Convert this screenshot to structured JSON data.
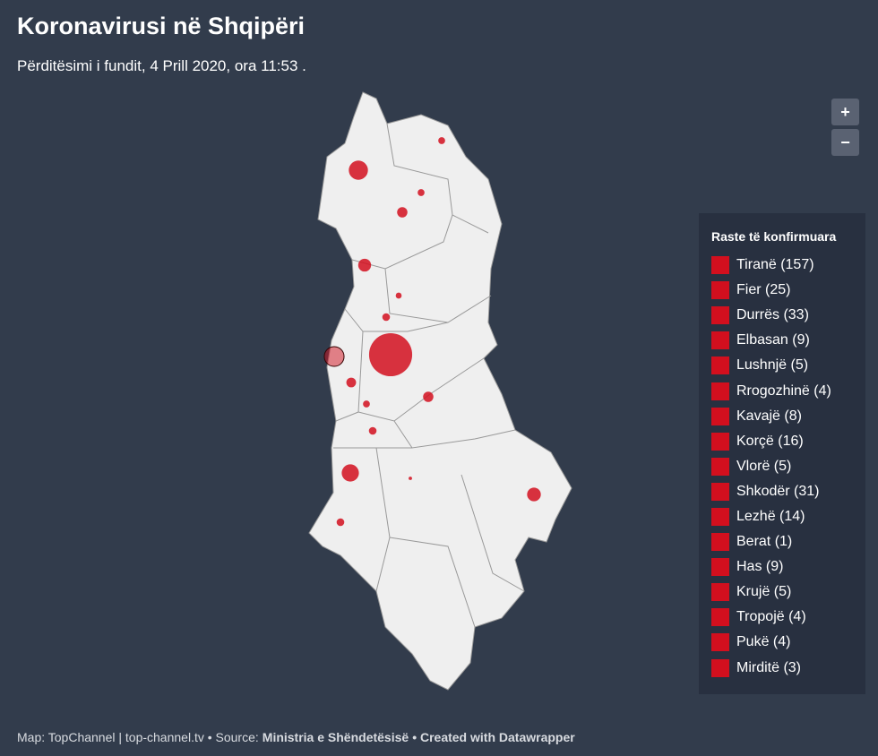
{
  "header": {
    "title": "Koronavirusi në Shqipëri",
    "subtitle": "Përditësimi i fundit, 4 Prill 2020, ora 11:53 ."
  },
  "controls": {
    "zoom_in": "+",
    "zoom_out": "−"
  },
  "legend": {
    "title": "Raste të konfirmuara",
    "color": "#d20f1e",
    "items": [
      {
        "label": "Tiranë (157)",
        "value": 157
      },
      {
        "label": "Fier (25)",
        "value": 25
      },
      {
        "label": "Durrës (33)",
        "value": 33
      },
      {
        "label": "Elbasan (9)",
        "value": 9
      },
      {
        "label": "Lushnjë (5)",
        "value": 5
      },
      {
        "label": "Rrogozhinë (4)",
        "value": 4
      },
      {
        "label": "Kavajë (8)",
        "value": 8
      },
      {
        "label": "Korçë (16)",
        "value": 16
      },
      {
        "label": "Vlorë (5)",
        "value": 5
      },
      {
        "label": "Shkodër (31)",
        "value": 31
      },
      {
        "label": "Lezhë (14)",
        "value": 14
      },
      {
        "label": "Berat (1)",
        "value": 1
      },
      {
        "label": "Has (9)",
        "value": 9
      },
      {
        "label": "Krujë (5)",
        "value": 5
      },
      {
        "label": "Tropojë (4)",
        "value": 4
      },
      {
        "label": "Pukë (4)",
        "value": 4
      },
      {
        "label": "Mirditë (3)",
        "value": 3
      }
    ]
  },
  "footer": {
    "map": "Map: TopChannel | top-channel.tv • Source:",
    "source": "Ministria e Shëndetësisë",
    "credit": "• Created with Datawrapper"
  }
}
